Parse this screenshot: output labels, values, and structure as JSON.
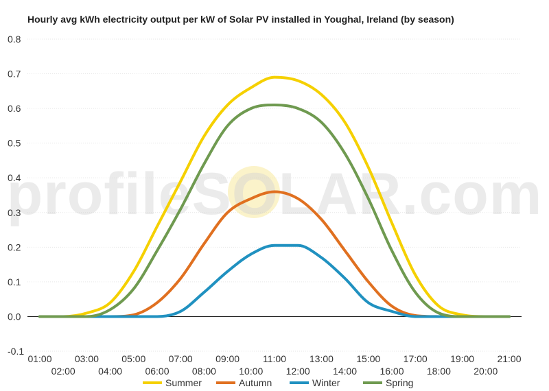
{
  "chart_data": {
    "type": "line",
    "title": "Hourly avg kWh electricity output per kW of Solar PV installed in Youghal, Ireland (by season)",
    "xlabel": "",
    "ylabel": "",
    "x": [
      "01:00",
      "02:00",
      "03:00",
      "04:00",
      "05:00",
      "06:00",
      "07:00",
      "08:00",
      "09:00",
      "10:00",
      "11:00",
      "12:00",
      "13:00",
      "14:00",
      "15:00",
      "16:00",
      "17:00",
      "18:00",
      "19:00",
      "20:00",
      "21:00"
    ],
    "ylim": [
      -0.1,
      0.8
    ],
    "yticks": [
      -0.1,
      0.0,
      0.1,
      0.2,
      0.3,
      0.4,
      0.5,
      0.6,
      0.7,
      0.8
    ],
    "grid": true,
    "legend_position": "bottom",
    "watermark": "profileSOLAR.com",
    "series": [
      {
        "name": "Summer",
        "color": "#f5d000",
        "values": [
          0,
          0,
          0.01,
          0.04,
          0.13,
          0.26,
          0.39,
          0.52,
          0.61,
          0.66,
          0.69,
          0.68,
          0.64,
          0.56,
          0.43,
          0.27,
          0.12,
          0.03,
          0.005,
          0,
          0
        ]
      },
      {
        "name": "Autumn",
        "color": "#e07020",
        "values": [
          0,
          0,
          0,
          0,
          0.005,
          0.04,
          0.11,
          0.21,
          0.3,
          0.34,
          0.36,
          0.34,
          0.28,
          0.19,
          0.1,
          0.03,
          0.003,
          0,
          0,
          0,
          0
        ]
      },
      {
        "name": "Winter",
        "color": "#2091c0",
        "values": [
          0,
          0,
          0,
          0,
          0,
          0,
          0.015,
          0.07,
          0.13,
          0.18,
          0.205,
          0.205,
          0.17,
          0.11,
          0.04,
          0.015,
          0,
          0,
          0,
          0,
          0
        ]
      },
      {
        "name": "Spring",
        "color": "#6f9a50",
        "values": [
          0,
          0,
          0,
          0.02,
          0.08,
          0.19,
          0.31,
          0.44,
          0.55,
          0.6,
          0.61,
          0.6,
          0.56,
          0.47,
          0.34,
          0.19,
          0.07,
          0.01,
          0,
          0,
          0
        ]
      }
    ]
  }
}
